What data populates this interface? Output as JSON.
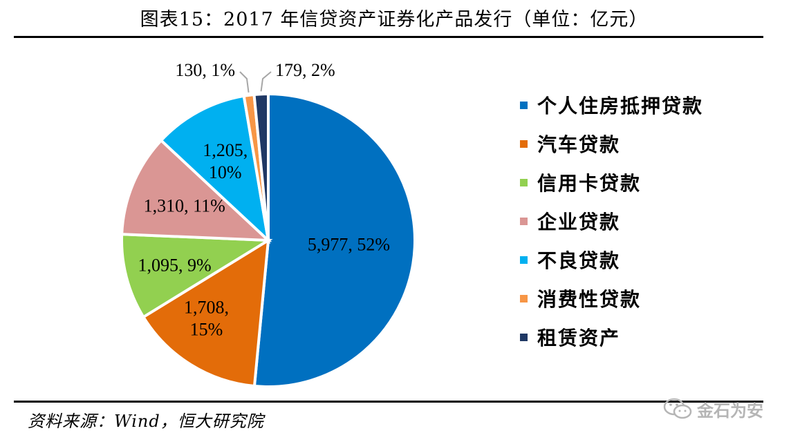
{
  "title": "图表15：2017 年信贷资产证券化产品发行（单位：亿元）",
  "source": "资料来源：Wind，恒大研究院",
  "watermark": {
    "text": "金石为安",
    "icon": "wechat-icon"
  },
  "chart_data": {
    "type": "pie",
    "title": "图表15：2017 年信贷资产证券化产品发行（单位：亿元）",
    "slices": [
      {
        "name": "个人住房抵押贷款",
        "value": 5977,
        "percent": 52,
        "label": "5,977, 52%",
        "color": "#0070C0"
      },
      {
        "name": "汽车贷款",
        "value": 1708,
        "percent": 15,
        "label": "1,708, 15%",
        "color": "#E36C09"
      },
      {
        "name": "信用卡贷款",
        "value": 1095,
        "percent": 9,
        "label": "1,095, 9%",
        "color": "#92D050"
      },
      {
        "name": "企业贷款",
        "value": 1310,
        "percent": 11,
        "label": "1,310, 11%",
        "color": "#DA9694"
      },
      {
        "name": "不良贷款",
        "value": 1205,
        "percent": 10,
        "label": "1,205, 10%",
        "color": "#00B0F0"
      },
      {
        "name": "消费性贷款",
        "value": 130,
        "percent": 1,
        "label": "130, 1%",
        "color": "#F79646"
      },
      {
        "name": "租赁资产",
        "value": 179,
        "percent": 2,
        "label": "179, 2%",
        "color": "#1F3864"
      }
    ],
    "legend_position": "right"
  }
}
